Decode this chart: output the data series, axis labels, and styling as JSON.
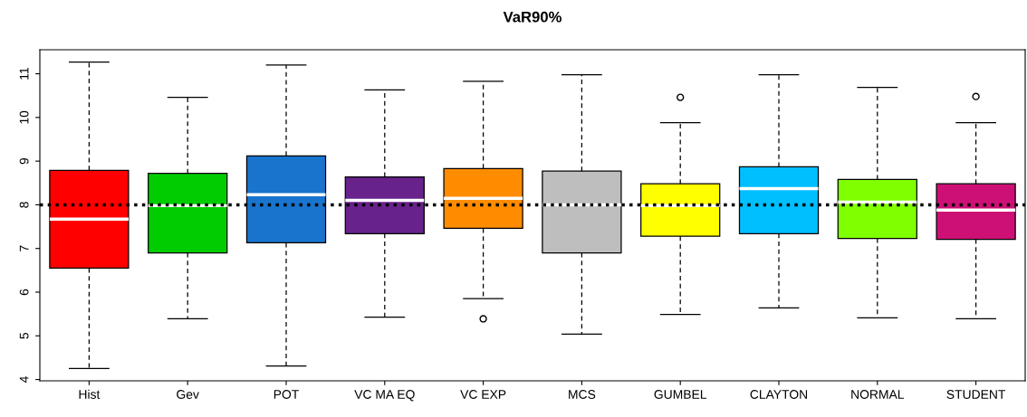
{
  "chart_data": {
    "type": "box",
    "title": "VaR90%",
    "categories": [
      "Hist",
      "Gev",
      "POT",
      "VC MA EQ",
      "VC EXP",
      "MCS",
      "GUMBEL",
      "CLAYTON",
      "NORMAL",
      "STUDENT"
    ],
    "colors": [
      "#ff0000",
      "#00cd00",
      "#1874cd",
      "#68228b",
      "#ff8c00",
      "#bebebe",
      "#ffff00",
      "#00bfff",
      "#7fff00",
      "#cd1076"
    ],
    "boxes": [
      {
        "low": 4.25,
        "q1": 6.55,
        "median": 7.67,
        "q3": 8.79,
        "high": 11.27
      },
      {
        "low": 5.39,
        "q1": 6.9,
        "median": 7.98,
        "q3": 8.72,
        "high": 10.46
      },
      {
        "low": 4.31,
        "q1": 7.13,
        "median": 8.23,
        "q3": 9.12,
        "high": 11.2
      },
      {
        "low": 5.43,
        "q1": 7.34,
        "median": 8.1,
        "q3": 8.64,
        "high": 10.63
      },
      {
        "low": 5.85,
        "q1": 7.46,
        "median": 8.15,
        "q3": 8.83,
        "high": 10.83,
        "outliers": [
          5.39
        ]
      },
      {
        "low": 5.04,
        "q1": 6.9,
        "median": 8.0,
        "q3": 8.77,
        "high": 10.98
      },
      {
        "low": 5.49,
        "q1": 7.28,
        "median": 7.98,
        "q3": 8.48,
        "high": 9.88,
        "outliers": [
          10.46
        ]
      },
      {
        "low": 5.64,
        "q1": 7.34,
        "median": 8.37,
        "q3": 8.87,
        "high": 10.98
      },
      {
        "low": 5.41,
        "q1": 7.23,
        "median": 8.06,
        "q3": 8.58,
        "high": 10.69
      },
      {
        "low": 5.39,
        "q1": 7.21,
        "median": 7.88,
        "q3": 8.48,
        "high": 9.88,
        "outliers": [
          10.48
        ]
      }
    ],
    "ylim": [
      3.97,
      11.55
    ],
    "yticks": [
      4,
      5,
      6,
      7,
      8,
      9,
      10,
      11
    ],
    "grid": false,
    "ref_lines": [
      {
        "axis": "y",
        "value": 8,
        "color": "#000000",
        "line_style": "dotted"
      }
    ]
  }
}
